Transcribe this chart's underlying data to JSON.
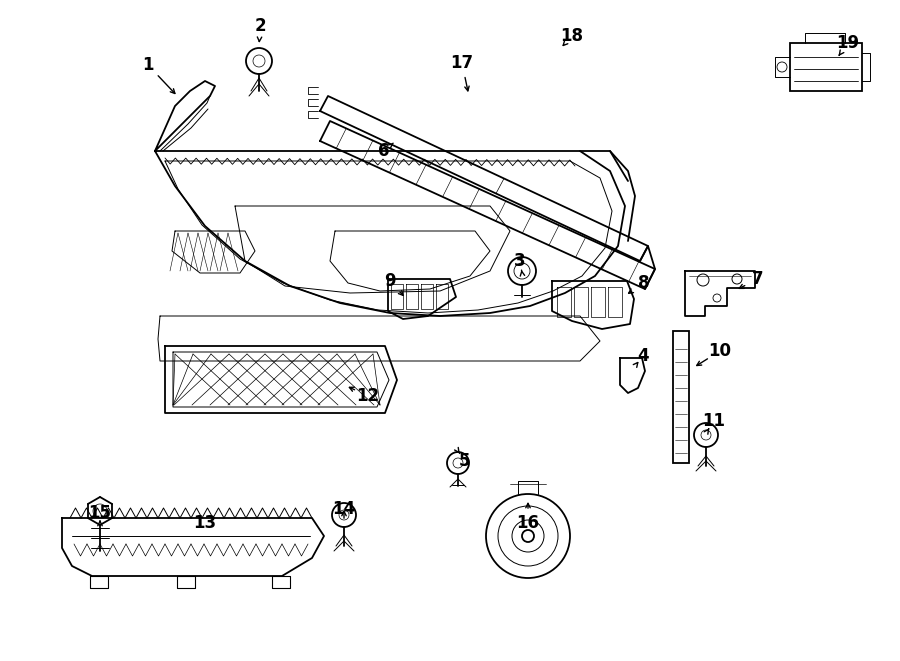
{
  "background_color": "#ffffff",
  "line_color": "#000000",
  "lw_main": 1.3,
  "lw_thin": 0.7,
  "lw_detail": 0.5,
  "label_fontsize": 12,
  "label_fontsize_small": 11
}
